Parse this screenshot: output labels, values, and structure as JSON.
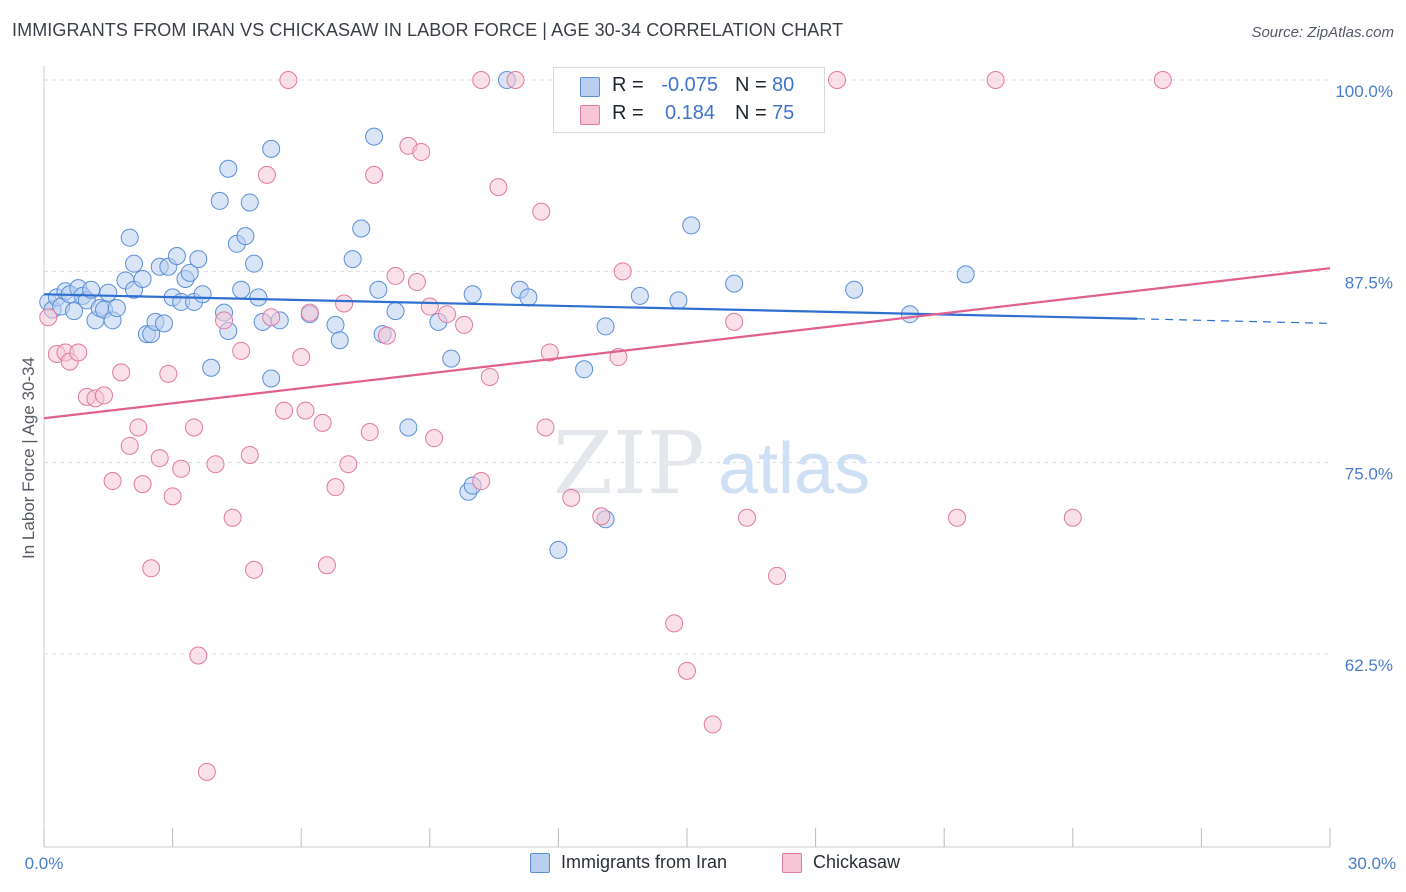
{
  "header": {
    "title": "IMMIGRANTS FROM IRAN VS CHICKASAW IN LABOR FORCE | AGE 30-34 CORRELATION CHART",
    "source": "Source: ZipAtlas.com"
  },
  "watermark": {
    "zip": "ZIP",
    "atlas": "atlas"
  },
  "legend": {
    "r_label": "R =",
    "n_label": "N =",
    "rows": [
      {
        "r": "-0.075",
        "n": "80"
      },
      {
        "r": "0.184",
        "n": "75"
      }
    ]
  },
  "chart_data": {
    "type": "scatter",
    "title": "IMMIGRANTS FROM IRAN VS CHICKASAW IN LABOR FORCE | AGE 30-34 CORRELATION CHART",
    "xlabel": "",
    "ylabel": "In Labor Force | Age 30-34",
    "xlim": [
      0,
      30
    ],
    "ylim": [
      50,
      100.5
    ],
    "x_tick_labels": [
      "0.0%",
      "30.0%"
    ],
    "y_ticks": [
      62.5,
      75,
      87.5,
      100
    ],
    "y_tick_labels": [
      "62.5%",
      "75.0%",
      "87.5%",
      "100.0%"
    ],
    "grid": "horizontal dashed",
    "legend_position": "top-center",
    "colors": {
      "blue": "#5b8fd8",
      "blue_fill": "#b9cff0",
      "pink": "#e07aa0",
      "pink_fill": "#f6c6d6",
      "trend_blue": "#2f6fd0",
      "trend_pink": "#e0608f"
    },
    "series": [
      {
        "name": "Immigrants from Iran",
        "color": "#5b8fd8",
        "r": -0.075,
        "n": 80,
        "trend": {
          "x0": 0,
          "y0": 86.0,
          "x1": 25.5,
          "y1": 84.4,
          "dash_to_x": 30,
          "dash_to_y": 84.1
        },
        "points": [
          [
            0.1,
            85.5
          ],
          [
            0.2,
            85.0
          ],
          [
            0.3,
            85.8
          ],
          [
            0.4,
            85.2
          ],
          [
            0.5,
            86.2
          ],
          [
            0.6,
            86.0
          ],
          [
            0.7,
            84.9
          ],
          [
            0.8,
            86.4
          ],
          [
            0.9,
            85.9
          ],
          [
            1.0,
            85.6
          ],
          [
            1.1,
            86.3
          ],
          [
            1.2,
            84.3
          ],
          [
            1.3,
            85.1
          ],
          [
            1.4,
            85.0
          ],
          [
            1.5,
            86.1
          ],
          [
            1.6,
            84.3
          ],
          [
            1.7,
            85.1
          ],
          [
            1.9,
            86.9
          ],
          [
            2.0,
            89.7
          ],
          [
            2.1,
            86.3
          ],
          [
            2.1,
            88.0
          ],
          [
            2.3,
            87.0
          ],
          [
            2.4,
            83.4
          ],
          [
            2.5,
            83.4
          ],
          [
            2.6,
            84.2
          ],
          [
            2.7,
            87.8
          ],
          [
            2.8,
            84.1
          ],
          [
            2.9,
            87.8
          ],
          [
            3.0,
            85.8
          ],
          [
            3.1,
            88.5
          ],
          [
            3.2,
            85.5
          ],
          [
            3.3,
            87.0
          ],
          [
            3.4,
            87.4
          ],
          [
            3.5,
            85.5
          ],
          [
            3.6,
            88.3
          ],
          [
            3.7,
            86.0
          ],
          [
            3.9,
            81.2
          ],
          [
            4.1,
            92.1
          ],
          [
            4.2,
            84.8
          ],
          [
            4.3,
            94.2
          ],
          [
            4.3,
            83.6
          ],
          [
            4.5,
            89.3
          ],
          [
            4.6,
            86.3
          ],
          [
            4.7,
            89.8
          ],
          [
            4.8,
            92.0
          ],
          [
            4.9,
            88.0
          ],
          [
            5.0,
            85.8
          ],
          [
            5.1,
            84.2
          ],
          [
            5.3,
            95.5
          ],
          [
            5.3,
            80.5
          ],
          [
            5.5,
            84.3
          ],
          [
            6.2,
            84.7
          ],
          [
            6.8,
            84.0
          ],
          [
            6.9,
            83.0
          ],
          [
            7.2,
            88.3
          ],
          [
            7.4,
            90.3
          ],
          [
            7.7,
            96.3
          ],
          [
            7.8,
            86.3
          ],
          [
            7.9,
            83.4
          ],
          [
            8.2,
            84.9
          ],
          [
            8.5,
            77.3
          ],
          [
            9.2,
            84.2
          ],
          [
            9.5,
            81.8
          ],
          [
            9.9,
            73.1
          ],
          [
            10.0,
            86.0
          ],
          [
            10.8,
            100.0
          ],
          [
            11.1,
            86.3
          ],
          [
            11.3,
            85.8
          ],
          [
            12.0,
            69.3
          ],
          [
            12.6,
            81.1
          ],
          [
            13.1,
            71.3
          ],
          [
            13.1,
            83.9
          ],
          [
            13.9,
            85.9
          ],
          [
            14.8,
            85.6
          ],
          [
            15.1,
            90.5
          ],
          [
            16.1,
            86.7
          ],
          [
            18.9,
            86.3
          ],
          [
            20.2,
            84.7
          ],
          [
            21.5,
            87.3
          ],
          [
            10.0,
            73.5
          ]
        ]
      },
      {
        "name": "Chickasaw",
        "color": "#e07aa0",
        "r": 0.184,
        "n": 75,
        "trend": {
          "x0": 0,
          "y0": 77.9,
          "x1": 30,
          "y1": 87.7
        },
        "points": [
          [
            0.1,
            84.5
          ],
          [
            0.3,
            82.1
          ],
          [
            0.5,
            82.2
          ],
          [
            0.6,
            81.6
          ],
          [
            0.8,
            82.2
          ],
          [
            1.0,
            79.3
          ],
          [
            1.2,
            79.2
          ],
          [
            1.4,
            79.4
          ],
          [
            1.6,
            73.8
          ],
          [
            1.8,
            80.9
          ],
          [
            2.0,
            76.1
          ],
          [
            2.2,
            77.3
          ],
          [
            2.3,
            73.6
          ],
          [
            2.5,
            68.1
          ],
          [
            2.7,
            75.3
          ],
          [
            2.9,
            80.8
          ],
          [
            3.0,
            72.8
          ],
          [
            3.2,
            74.6
          ],
          [
            3.5,
            77.3
          ],
          [
            3.6,
            62.4
          ],
          [
            3.8,
            54.8
          ],
          [
            4.0,
            74.9
          ],
          [
            4.2,
            84.3
          ],
          [
            4.4,
            71.4
          ],
          [
            4.6,
            82.3
          ],
          [
            4.8,
            75.5
          ],
          [
            4.9,
            68.0
          ],
          [
            5.2,
            93.8
          ],
          [
            5.3,
            84.5
          ],
          [
            5.6,
            78.4
          ],
          [
            6.0,
            81.9
          ],
          [
            6.1,
            78.4
          ],
          [
            6.2,
            84.8
          ],
          [
            6.5,
            77.6
          ],
          [
            6.6,
            68.3
          ],
          [
            6.8,
            73.4
          ],
          [
            7.0,
            85.4
          ],
          [
            7.1,
            74.9
          ],
          [
            7.6,
            77.0
          ],
          [
            7.7,
            93.8
          ],
          [
            8.0,
            83.3
          ],
          [
            8.2,
            87.2
          ],
          [
            8.5,
            95.7
          ],
          [
            8.7,
            86.8
          ],
          [
            8.8,
            95.3
          ],
          [
            9.0,
            85.2
          ],
          [
            9.1,
            76.6
          ],
          [
            9.4,
            84.7
          ],
          [
            9.8,
            84.0
          ],
          [
            10.2,
            73.8
          ],
          [
            10.4,
            80.6
          ],
          [
            10.6,
            93.0
          ],
          [
            11.0,
            100.0
          ],
          [
            11.6,
            91.4
          ],
          [
            11.7,
            77.3
          ],
          [
            11.8,
            82.2
          ],
          [
            12.3,
            72.7
          ],
          [
            13.0,
            71.5
          ],
          [
            13.4,
            81.9
          ],
          [
            13.5,
            87.5
          ],
          [
            14.7,
            64.5
          ],
          [
            15.0,
            61.4
          ],
          [
            15.6,
            57.9
          ],
          [
            16.1,
            84.2
          ],
          [
            16.4,
            71.4
          ],
          [
            17.0,
            100.0
          ],
          [
            17.1,
            67.6
          ],
          [
            18.5,
            100.0
          ],
          [
            21.3,
            71.4
          ],
          [
            22.2,
            100.0
          ],
          [
            24.0,
            71.4
          ],
          [
            26.1,
            100.0
          ],
          [
            5.7,
            100.0
          ],
          [
            10.2,
            100.0
          ],
          [
            12.1,
            100.0
          ]
        ]
      }
    ]
  }
}
